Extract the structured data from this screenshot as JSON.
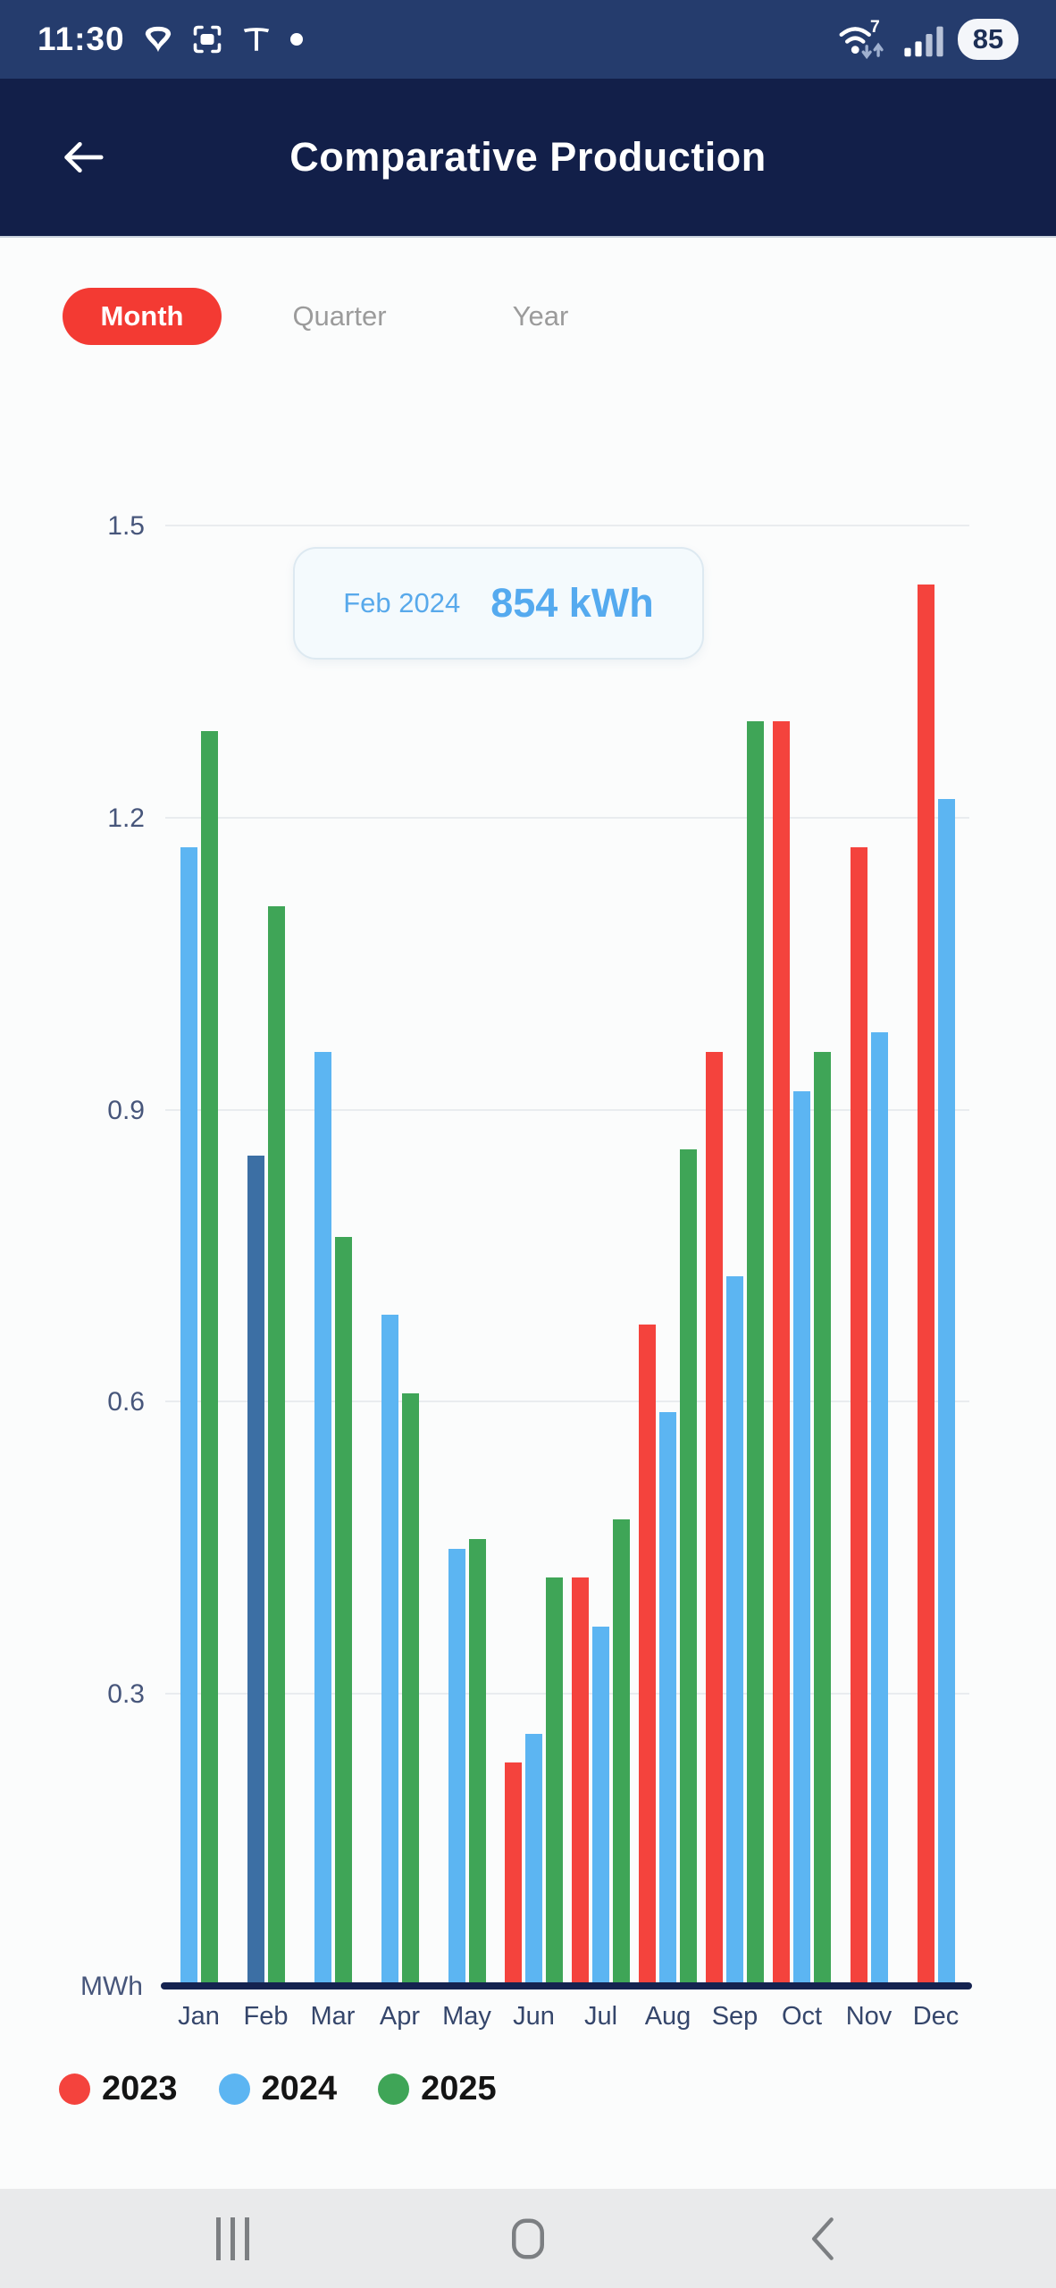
{
  "status_bar": {
    "time": "11:30",
    "battery": "85",
    "wifi_generation": "7",
    "icons": [
      "vpn-icon",
      "screen-capture-icon",
      "tesla-icon",
      "notification-dot",
      "wifi-icon",
      "cellular-signal-icon",
      "battery-indicator"
    ]
  },
  "header": {
    "title": "Comparative Production"
  },
  "tabs": {
    "month": "Month",
    "quarter": "Quarter",
    "year": "Year",
    "selected": "Month",
    "selected_color": "#f33a33"
  },
  "tooltip": {
    "label": "Feb 2024",
    "value": "854 kWh"
  },
  "chart_data": {
    "type": "bar",
    "title": "",
    "xlabel": "",
    "ylabel": "MWh",
    "ylim": [
      0,
      1.5
    ],
    "yticks": [
      0.3,
      0.6,
      0.9,
      1.2,
      1.5
    ],
    "grid": true,
    "legend_position": "bottom",
    "categories": [
      "Jan",
      "Feb",
      "Mar",
      "Apr",
      "May",
      "Jun",
      "Jul",
      "Aug",
      "Sep",
      "Oct",
      "Nov",
      "Dec"
    ],
    "series": [
      {
        "name": "2023",
        "color": "#f4433d",
        "values": [
          null,
          null,
          null,
          null,
          null,
          0.23,
          0.42,
          0.68,
          0.96,
          1.3,
          1.17,
          1.44
        ]
      },
      {
        "name": "2024",
        "color": "#5cb5f2",
        "values": [
          1.17,
          0.854,
          0.96,
          0.69,
          0.45,
          0.26,
          0.37,
          0.59,
          0.73,
          0.92,
          0.98,
          1.22
        ],
        "highlight": {
          "index": 1,
          "color": "#3c6fa4",
          "note": "selected bar Feb 2024 = 854 kWh"
        }
      },
      {
        "name": "2025",
        "color": "#3fa557",
        "values": [
          1.29,
          1.11,
          0.77,
          0.61,
          0.46,
          0.42,
          0.48,
          0.86,
          1.3,
          0.96,
          null,
          null
        ]
      }
    ]
  },
  "legend": [
    {
      "label": "2023",
      "color": "#f4433d"
    },
    {
      "label": "2024",
      "color": "#5cb5f2"
    },
    {
      "label": "2025",
      "color": "#3fa557"
    }
  ],
  "nav_bar": {
    "icons": [
      "recents-icon",
      "home-icon",
      "back-icon"
    ]
  },
  "colors": {
    "status_bar_bg": "#253c6d",
    "header_bg": "#121f49",
    "baseline": "#152350",
    "gridline": "#e9ecef",
    "axis_text": "#47567b",
    "tooltip_text": "#56a9ee",
    "nav_bg": "#e9eaeb"
  }
}
